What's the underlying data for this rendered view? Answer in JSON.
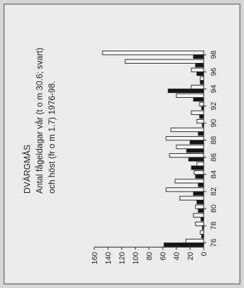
{
  "chart_data": {
    "type": "bar",
    "orientation": "rotated-90-ccw",
    "title": "DVÄRGMÅS",
    "subtitle_lines": [
      "Antal fågeldagar vår (t o m 30.6; svart)",
      "och höst (fr o m 1.7) 1976-98."
    ],
    "year_tick_labels": [
      "76",
      "78",
      "80",
      "82",
      "84",
      "86",
      "88",
      "90",
      "92",
      "94",
      "96",
      "98"
    ],
    "value_tick_labels": [
      "0",
      "20",
      "40",
      "60",
      "80",
      "100",
      "120",
      "140",
      "160"
    ],
    "ylim": [
      0,
      160
    ],
    "xlim": [
      1975.5,
      1998.5
    ],
    "grid": false,
    "colors": {
      "spring": "#151515",
      "autumn": "#f4f4f4",
      "outline": "#1a1a1a",
      "paper": "#ececec",
      "background": "#d6d6d6"
    },
    "x": [
      1976,
      1977,
      1978,
      1979,
      1980,
      1981,
      1982,
      1983,
      1984,
      1985,
      1986,
      1987,
      1988,
      1989,
      1990,
      1991,
      1992,
      1993,
      1994,
      1995,
      1996,
      1997,
      1998
    ],
    "series": [
      {
        "key": "spring",
        "values": [
          58,
          3,
          2,
          4,
          8,
          10,
          15,
          8,
          12,
          18,
          22,
          25,
          20,
          8,
          2,
          6,
          3,
          15,
          52,
          5,
          10,
          12,
          15
        ]
      },
      {
        "key": "autumn",
        "values": [
          26,
          5,
          12,
          15,
          12,
          35,
          55,
          42,
          14,
          10,
          50,
          40,
          55,
          48,
          10,
          18,
          6,
          40,
          18,
          5,
          18,
          115,
          148
        ]
      }
    ]
  }
}
